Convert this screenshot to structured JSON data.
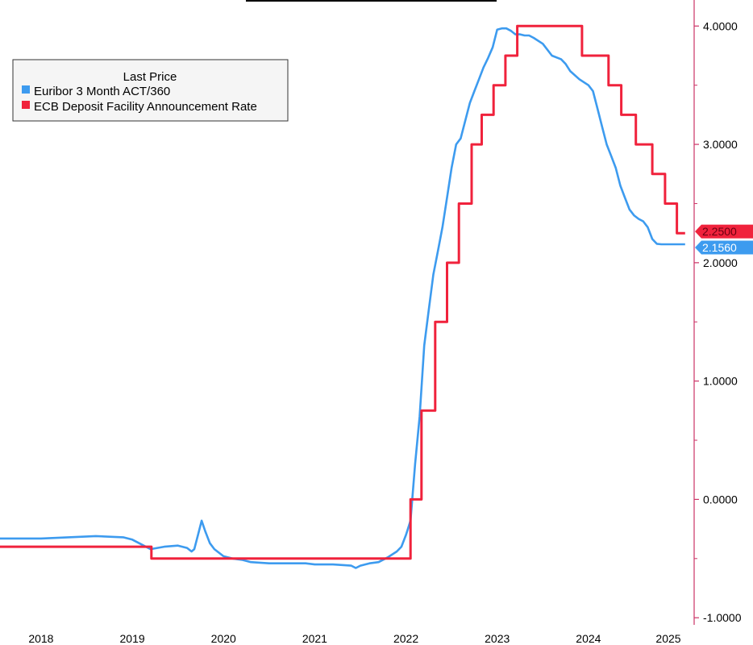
{
  "chart_data": {
    "type": "line",
    "legend": {
      "title": "Last Price",
      "placement": "top-left",
      "entries": [
        {
          "name": "Euribor 3 Month ACT/360",
          "color": "#3d9bef"
        },
        {
          "name": "ECB Deposit Facility Announcement Rate",
          "color": "#f0223c"
        }
      ]
    },
    "xlim": [
      2017.55,
      2025.15
    ],
    "ylim": [
      -1.06,
      4.22
    ],
    "x_ticks": [
      {
        "value": 2018,
        "label": "2018"
      },
      {
        "value": 2019,
        "label": "2019"
      },
      {
        "value": 2020,
        "label": "2020"
      },
      {
        "value": 2021,
        "label": "2021"
      },
      {
        "value": 2022,
        "label": "2022"
      },
      {
        "value": 2023,
        "label": "2023"
      },
      {
        "value": 2024,
        "label": "2024"
      },
      {
        "value": 2025,
        "label": "2025"
      }
    ],
    "y_ticks": [
      {
        "value": 4,
        "label": "4.0000"
      },
      {
        "value": 3,
        "label": "3.0000"
      },
      {
        "value": 2,
        "label": "2.0000"
      },
      {
        "value": 1,
        "label": "1.0000"
      },
      {
        "value": 0,
        "label": "0.0000"
      },
      {
        "value": -1,
        "label": "-1.0000"
      }
    ],
    "last_values": [
      {
        "series": "ECB Deposit Facility Announcement Rate",
        "label": "2.2500",
        "value": 2.25,
        "color": "#f0223c"
      },
      {
        "series": "Euribor 3 Month ACT/360",
        "label": "2.1560",
        "value": 2.156,
        "color": "#3d9bef"
      }
    ],
    "series": [
      {
        "name": "Euribor 3 Month ACT/360",
        "color": "#3d9bef",
        "x": [
          2017.55,
          2017.8,
          2018.0,
          2018.3,
          2018.6,
          2018.9,
          2019.0,
          2019.1,
          2019.2,
          2019.35,
          2019.5,
          2019.6,
          2019.65,
          2019.68,
          2019.72,
          2019.76,
          2019.8,
          2019.85,
          2019.9,
          2020.0,
          2020.1,
          2020.2,
          2020.3,
          2020.5,
          2020.7,
          2020.9,
          2021.0,
          2021.2,
          2021.4,
          2021.45,
          2021.5,
          2021.6,
          2021.7,
          2021.8,
          2021.9,
          2021.95,
          2022.0,
          2022.05,
          2022.1,
          2022.15,
          2022.2,
          2022.25,
          2022.3,
          2022.35,
          2022.4,
          2022.45,
          2022.5,
          2022.55,
          2022.6,
          2022.65,
          2022.7,
          2022.75,
          2022.8,
          2022.85,
          2022.9,
          2022.95,
          2023.0,
          2023.05,
          2023.1,
          2023.15,
          2023.2,
          2023.25,
          2023.3,
          2023.35,
          2023.4,
          2023.5,
          2023.6,
          2023.7,
          2023.75,
          2023.8,
          2023.9,
          2024.0,
          2024.05,
          2024.1,
          2024.15,
          2024.2,
          2024.25,
          2024.3,
          2024.35,
          2024.4,
          2024.45,
          2024.5,
          2024.55,
          2024.6,
          2024.65,
          2024.7,
          2024.75,
          2024.8,
          2024.85,
          2024.9,
          2024.95,
          2025.0,
          2025.03,
          2025.06
        ],
        "y": [
          -0.33,
          -0.33,
          -0.33,
          -0.32,
          -0.31,
          -0.32,
          -0.34,
          -0.38,
          -0.42,
          -0.4,
          -0.39,
          -0.41,
          -0.44,
          -0.42,
          -0.3,
          -0.18,
          -0.27,
          -0.37,
          -0.42,
          -0.48,
          -0.5,
          -0.51,
          -0.53,
          -0.54,
          -0.54,
          -0.54,
          -0.55,
          -0.55,
          -0.56,
          -0.58,
          -0.56,
          -0.54,
          -0.53,
          -0.49,
          -0.44,
          -0.4,
          -0.3,
          -0.18,
          0.3,
          0.7,
          1.3,
          1.6,
          1.9,
          2.1,
          2.3,
          2.55,
          2.8,
          3.0,
          3.05,
          3.2,
          3.35,
          3.45,
          3.55,
          3.65,
          3.73,
          3.82,
          3.97,
          3.98,
          3.98,
          3.96,
          3.93,
          3.93,
          3.92,
          3.92,
          3.9,
          3.85,
          3.75,
          3.72,
          3.68,
          3.62,
          3.55,
          3.5,
          3.45,
          3.3,
          3.15,
          3.0,
          2.9,
          2.8,
          2.65,
          2.55,
          2.45,
          2.4,
          2.37,
          2.35,
          2.3,
          2.2,
          2.16,
          2.156,
          2.156,
          2.156,
          2.156,
          2.156,
          2.156,
          2.156
        ]
      },
      {
        "name": "ECB Deposit Facility Announcement Rate",
        "color": "#f0223c",
        "x": [
          2017.55,
          2019.21,
          2019.21,
          2022.05,
          2022.05,
          2022.17,
          2022.17,
          2022.32,
          2022.32,
          2022.45,
          2022.45,
          2022.58,
          2022.58,
          2022.72,
          2022.72,
          2022.83,
          2022.83,
          2022.96,
          2022.96,
          2023.09,
          2023.09,
          2023.22,
          2023.22,
          2023.93,
          2023.93,
          2024.22,
          2024.22,
          2024.36,
          2024.36,
          2024.52,
          2024.52,
          2024.7,
          2024.7,
          2024.84,
          2024.84,
          2024.97,
          2024.97,
          2025.06
        ],
        "y": [
          -0.4,
          -0.4,
          -0.5,
          -0.5,
          0.0,
          0.0,
          0.75,
          0.75,
          1.5,
          1.5,
          2.0,
          2.0,
          2.5,
          2.5,
          3.0,
          3.0,
          3.25,
          3.25,
          3.5,
          3.5,
          3.75,
          3.75,
          4.0,
          4.0,
          3.75,
          3.75,
          3.5,
          3.5,
          3.25,
          3.25,
          3.0,
          3.0,
          2.75,
          2.75,
          2.5,
          2.5,
          2.25,
          2.25
        ]
      }
    ]
  }
}
